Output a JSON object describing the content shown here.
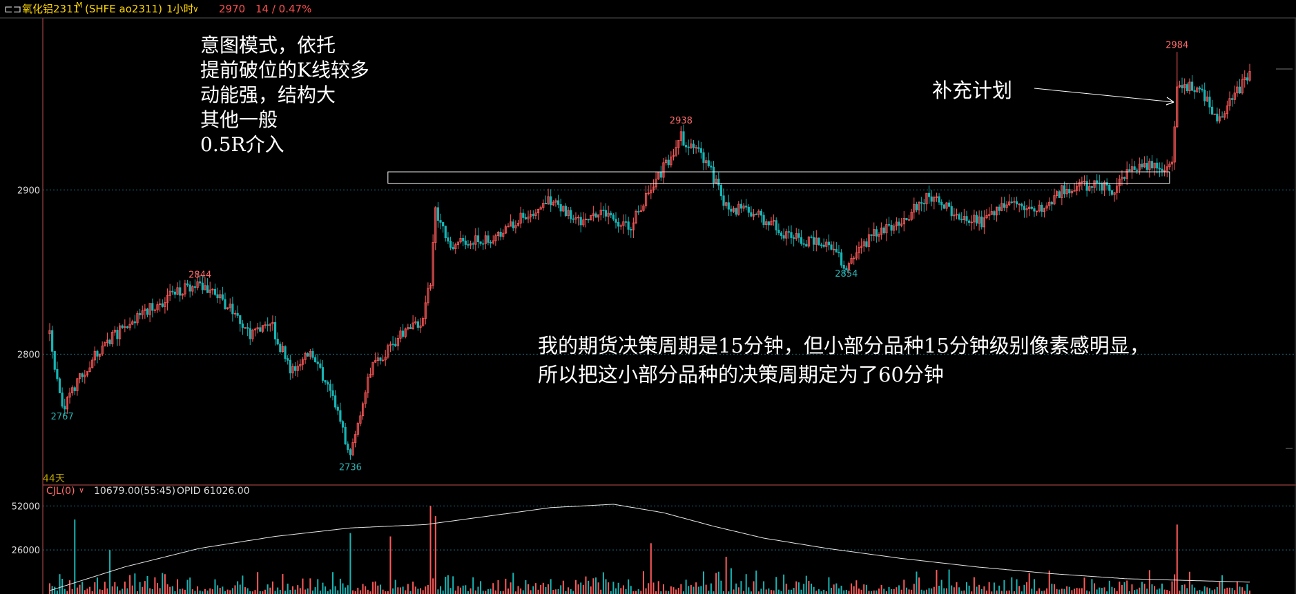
{
  "header": {
    "link_icon": "link-icon",
    "symbol": "氧化铝2311",
    "symbol_sup": "M",
    "code": "(SHFE ao2311)",
    "period": "1小时",
    "period_caret": "∨",
    "last": "2970",
    "change": "14 / 0.47%"
  },
  "annotations": {
    "intent_lines": [
      "意图模式，依托",
      "提前破位的K线较多",
      "动能强，结构大",
      "其他一般",
      "0.5R介入"
    ],
    "plan_label": "补充计划",
    "note_lines": [
      "我的期货决策周期是15分钟，但小部分品种15分钟级别像素感明显，",
      "所以把这小部分品种的决策周期定为了60分钟"
    ],
    "days_label": "44天"
  },
  "volume_panel": {
    "indicator": "CJL(0)",
    "caret": "∨",
    "volume": "10679.00(55:45)",
    "opid": "OPID 61026.00"
  },
  "colors": {
    "up": "#ff5a5a",
    "down": "#17b5b5",
    "grid": "#1a6f80",
    "frame": "#c05050",
    "header_symbol": "#ffd700",
    "header_value": "#ff4d4d",
    "label_peak": "#ff6b6b",
    "label_trough": "#2bb5b5"
  },
  "chart_data": [
    {
      "type": "candlestick",
      "y_ticks": [
        2900,
        2800
      ],
      "ylim": [
        2730,
        2990
      ],
      "price_anchors": [
        {
          "bar": 0,
          "price": 2812
        },
        {
          "bar": 5,
          "price": 2767
        },
        {
          "bar": 18,
          "price": 2800
        },
        {
          "bar": 32,
          "price": 2820
        },
        {
          "bar": 48,
          "price": 2835
        },
        {
          "bar": 60,
          "price": 2844
        },
        {
          "bar": 72,
          "price": 2828
        },
        {
          "bar": 80,
          "price": 2810
        },
        {
          "bar": 88,
          "price": 2820
        },
        {
          "bar": 96,
          "price": 2790
        },
        {
          "bar": 104,
          "price": 2802
        },
        {
          "bar": 114,
          "price": 2770
        },
        {
          "bar": 120,
          "price": 2736
        },
        {
          "bar": 128,
          "price": 2790
        },
        {
          "bar": 140,
          "price": 2812
        },
        {
          "bar": 148,
          "price": 2818
        },
        {
          "bar": 152,
          "price": 2845
        },
        {
          "bar": 154,
          "price": 2888
        },
        {
          "bar": 160,
          "price": 2866
        },
        {
          "bar": 175,
          "price": 2870
        },
        {
          "bar": 188,
          "price": 2883
        },
        {
          "bar": 200,
          "price": 2894
        },
        {
          "bar": 210,
          "price": 2880
        },
        {
          "bar": 220,
          "price": 2886
        },
        {
          "bar": 232,
          "price": 2878
        },
        {
          "bar": 240,
          "price": 2900
        },
        {
          "bar": 252,
          "price": 2932
        },
        {
          "bar": 262,
          "price": 2918
        },
        {
          "bar": 270,
          "price": 2890
        },
        {
          "bar": 282,
          "price": 2885
        },
        {
          "bar": 295,
          "price": 2872
        },
        {
          "bar": 310,
          "price": 2866
        },
        {
          "bar": 318,
          "price": 2854
        },
        {
          "bar": 328,
          "price": 2872
        },
        {
          "bar": 340,
          "price": 2880
        },
        {
          "bar": 350,
          "price": 2896
        },
        {
          "bar": 362,
          "price": 2886
        },
        {
          "bar": 372,
          "price": 2880
        },
        {
          "bar": 384,
          "price": 2894
        },
        {
          "bar": 396,
          "price": 2887
        },
        {
          "bar": 404,
          "price": 2900
        },
        {
          "bar": 416,
          "price": 2903
        },
        {
          "bar": 424,
          "price": 2900
        },
        {
          "bar": 434,
          "price": 2915
        },
        {
          "bar": 444,
          "price": 2914
        },
        {
          "bar": 448,
          "price": 2918
        },
        {
          "bar": 450,
          "price": 2965
        },
        {
          "bar": 460,
          "price": 2960
        },
        {
          "bar": 466,
          "price": 2944
        },
        {
          "bar": 472,
          "price": 2955
        },
        {
          "bar": 479,
          "price": 2970
        }
      ],
      "marked_extremes": [
        {
          "label": "2844",
          "price": 2844,
          "kind": "high"
        },
        {
          "label": "2938",
          "price": 2938,
          "kind": "high"
        },
        {
          "label": "2984",
          "price": 2984,
          "kind": "high"
        },
        {
          "label": "2767",
          "price": 2767,
          "kind": "low"
        },
        {
          "label": "2736",
          "price": 2736,
          "kind": "low"
        },
        {
          "label": "2854",
          "price": 2854,
          "kind": "low"
        }
      ],
      "range_box": {
        "price_low": 2904,
        "price_high": 2911
      }
    },
    {
      "type": "bar",
      "name": "CJL",
      "y_ticks": [
        52000,
        26000
      ],
      "ylim": [
        0,
        55000
      ],
      "open_interest_line": [
        {
          "bar": 0,
          "value": 2000
        },
        {
          "bar": 30,
          "value": 16000
        },
        {
          "bar": 60,
          "value": 27000
        },
        {
          "bar": 90,
          "value": 34000
        },
        {
          "bar": 120,
          "value": 39000
        },
        {
          "bar": 150,
          "value": 41000
        },
        {
          "bar": 175,
          "value": 46000
        },
        {
          "bar": 200,
          "value": 51000
        },
        {
          "bar": 225,
          "value": 53000
        },
        {
          "bar": 245,
          "value": 48000
        },
        {
          "bar": 265,
          "value": 40000
        },
        {
          "bar": 285,
          "value": 33000
        },
        {
          "bar": 310,
          "value": 27000
        },
        {
          "bar": 340,
          "value": 21000
        },
        {
          "bar": 370,
          "value": 16000
        },
        {
          "bar": 400,
          "value": 12000
        },
        {
          "bar": 430,
          "value": 9000
        },
        {
          "bar": 479,
          "value": 7000
        }
      ],
      "volume_spikes": [
        {
          "bar": 10,
          "value": 44000
        },
        {
          "bar": 152,
          "value": 52000
        },
        {
          "bar": 154,
          "value": 46000
        },
        {
          "bar": 240,
          "value": 30000
        },
        {
          "bar": 450,
          "value": 41000
        },
        {
          "bar": 24,
          "value": 26000
        },
        {
          "bar": 120,
          "value": 36000
        },
        {
          "bar": 136,
          "value": 34000
        },
        {
          "bar": 270,
          "value": 22000
        }
      ]
    }
  ]
}
